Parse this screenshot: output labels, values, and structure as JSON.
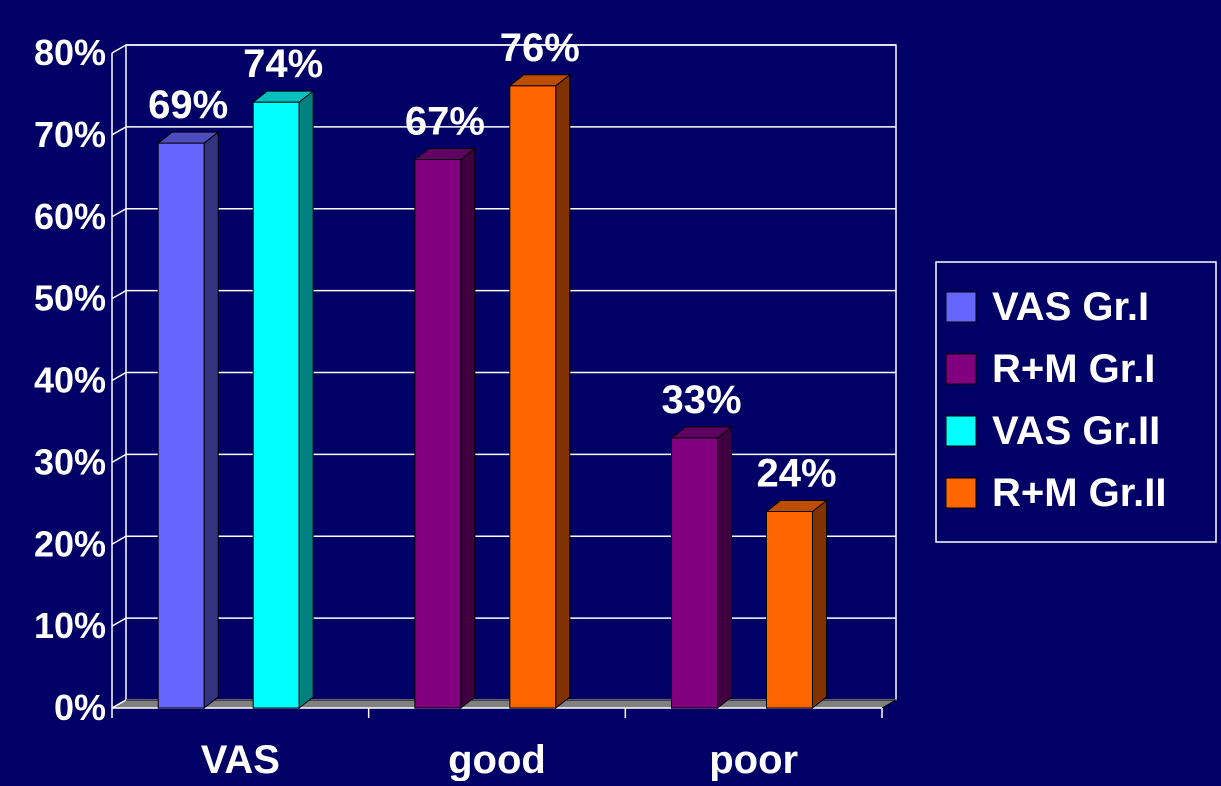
{
  "chart_data": {
    "type": "bar",
    "categories": [
      "VAS",
      "good",
      "poor"
    ],
    "ylim": [
      0,
      80
    ],
    "y_tick_step": 10,
    "y_tick_format": "percent",
    "grid": true,
    "legend_position": "right",
    "series": [
      {
        "name": "VAS Gr.I",
        "color": "#6666ff",
        "values": [
          69,
          null,
          null
        ],
        "labels": [
          "69%",
          "",
          ""
        ]
      },
      {
        "name": "R+M Gr.I",
        "color": "#800080",
        "values": [
          null,
          67,
          33
        ],
        "labels": [
          "",
          "67%",
          "33%"
        ]
      },
      {
        "name": "VAS Gr.II",
        "color": "#00ffff",
        "values": [
          74,
          null,
          null
        ],
        "labels": [
          "74%",
          "",
          ""
        ]
      },
      {
        "name": "R+M Gr.II",
        "color": "#ff6600",
        "values": [
          null,
          76,
          24
        ],
        "labels": [
          "",
          "76%",
          "24%"
        ]
      }
    ],
    "bar_order": [
      {
        "category": 0,
        "series": 0
      },
      {
        "category": 0,
        "series": 2
      },
      {
        "category": 1,
        "series": 1
      },
      {
        "category": 1,
        "series": 3
      },
      {
        "category": 2,
        "series": 1
      },
      {
        "category": 2,
        "series": 3
      }
    ],
    "colors": {
      "background": "#000066",
      "axis": "#ffffff",
      "grid": "#ffffff",
      "floor": "#808080",
      "text": "#ffffff"
    }
  }
}
